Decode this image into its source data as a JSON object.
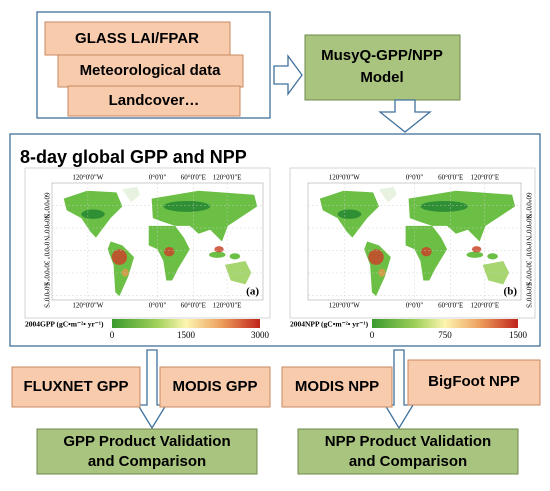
{
  "inputs": [
    "GLASS LAI/FPAR",
    "Meteorological data",
    "Landcover…"
  ],
  "model": {
    "lines": [
      "MusyQ-GPP/NPP",
      "Model"
    ]
  },
  "panel": {
    "title": "8-day global GPP and NPP",
    "maps": [
      {
        "label": "(a)",
        "lon": [
          "120°0'0\"W",
          "0°0'0\"",
          "60°0'0\"E",
          "120°0'0\"E"
        ],
        "lat": [
          "60°0'0\"N",
          "30°0'0\"N",
          "0°0'0\"",
          "30°0'0\"S",
          "60°0'0\"S"
        ],
        "colorbar": {
          "label": "2004GPP (gC•m⁻²• yr⁻¹)",
          "ticks": [
            0,
            1500,
            3000
          ]
        }
      },
      {
        "label": "(b)",
        "lon": [
          "120°0'0\"W",
          "0°0'0\"",
          "60°0'0\"E",
          "120°0'0\"E"
        ],
        "lat": [
          "60°0'0\"N",
          "30°0'0\"N",
          "0°0'0\"",
          "30°0'0\"S",
          "60°0'0\"S"
        ],
        "colorbar": {
          "label": "2004NPP (gC•m⁻²• yr⁻¹)",
          "ticks": [
            0,
            750,
            1500
          ]
        }
      }
    ]
  },
  "validation": [
    "FLUXNET GPP",
    "MODIS GPP",
    "MODIS NPP",
    "BigFoot NPP"
  ],
  "outputs": [
    {
      "lines": [
        "GPP Product Validation",
        "and Comparison"
      ]
    },
    {
      "lines": [
        "NPP Product Validation",
        "and Comparison"
      ]
    }
  ]
}
